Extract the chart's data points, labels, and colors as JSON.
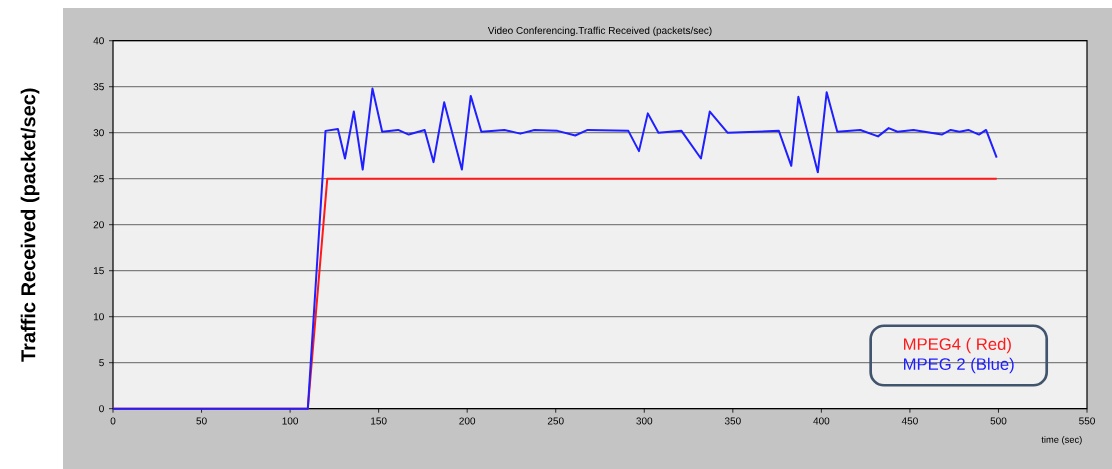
{
  "chart_data": {
    "type": "line",
    "title": "Video Conferencing.Traffic Received (packets/sec)",
    "xlabel": "time (sec)",
    "ylabel": "Traffic Received (packet/sec)",
    "xlim": [
      0,
      550
    ],
    "ylim": [
      0,
      40
    ],
    "xticks": [
      0,
      50,
      100,
      150,
      200,
      250,
      300,
      350,
      400,
      450,
      500,
      550
    ],
    "yticks": [
      0,
      5,
      10,
      15,
      20,
      25,
      30,
      35,
      40
    ],
    "grid": "y",
    "legend": "bottom right",
    "series": [
      {
        "name": "MPEG4 ( Red)",
        "color": "#ff1a1a",
        "x": [
          0,
          110,
          121,
          499
        ],
        "values": [
          0,
          0,
          25,
          25
        ]
      },
      {
        "name": "MPEG 2 (Blue)",
        "color": "#1f1fff",
        "x": [
          0,
          110,
          120,
          127,
          131,
          136,
          141,
          146.5,
          152,
          161,
          167,
          176,
          181,
          187,
          197,
          202,
          208,
          221,
          230,
          238,
          251,
          261,
          268,
          291,
          297,
          302,
          308,
          321,
          332,
          337,
          347,
          376,
          383,
          387,
          398,
          403,
          409,
          422,
          432,
          438,
          443,
          452,
          468,
          473,
          478,
          483,
          489,
          493,
          499
        ],
        "values": [
          0,
          0,
          30.2,
          30.4,
          27.2,
          32.3,
          26,
          34.8,
          30.1,
          30.3,
          29.8,
          30.3,
          26.8,
          33.3,
          26,
          34,
          30.1,
          30.3,
          29.9,
          30.3,
          30.2,
          29.7,
          30.3,
          30.2,
          28,
          32.1,
          30,
          30.2,
          27.2,
          32.3,
          30,
          30.2,
          26.4,
          33.9,
          25.7,
          34.4,
          30.1,
          30.3,
          29.6,
          30.5,
          30.1,
          30.3,
          29.8,
          30.3,
          30.1,
          30.3,
          29.8,
          30.3,
          27.3
        ]
      }
    ]
  }
}
